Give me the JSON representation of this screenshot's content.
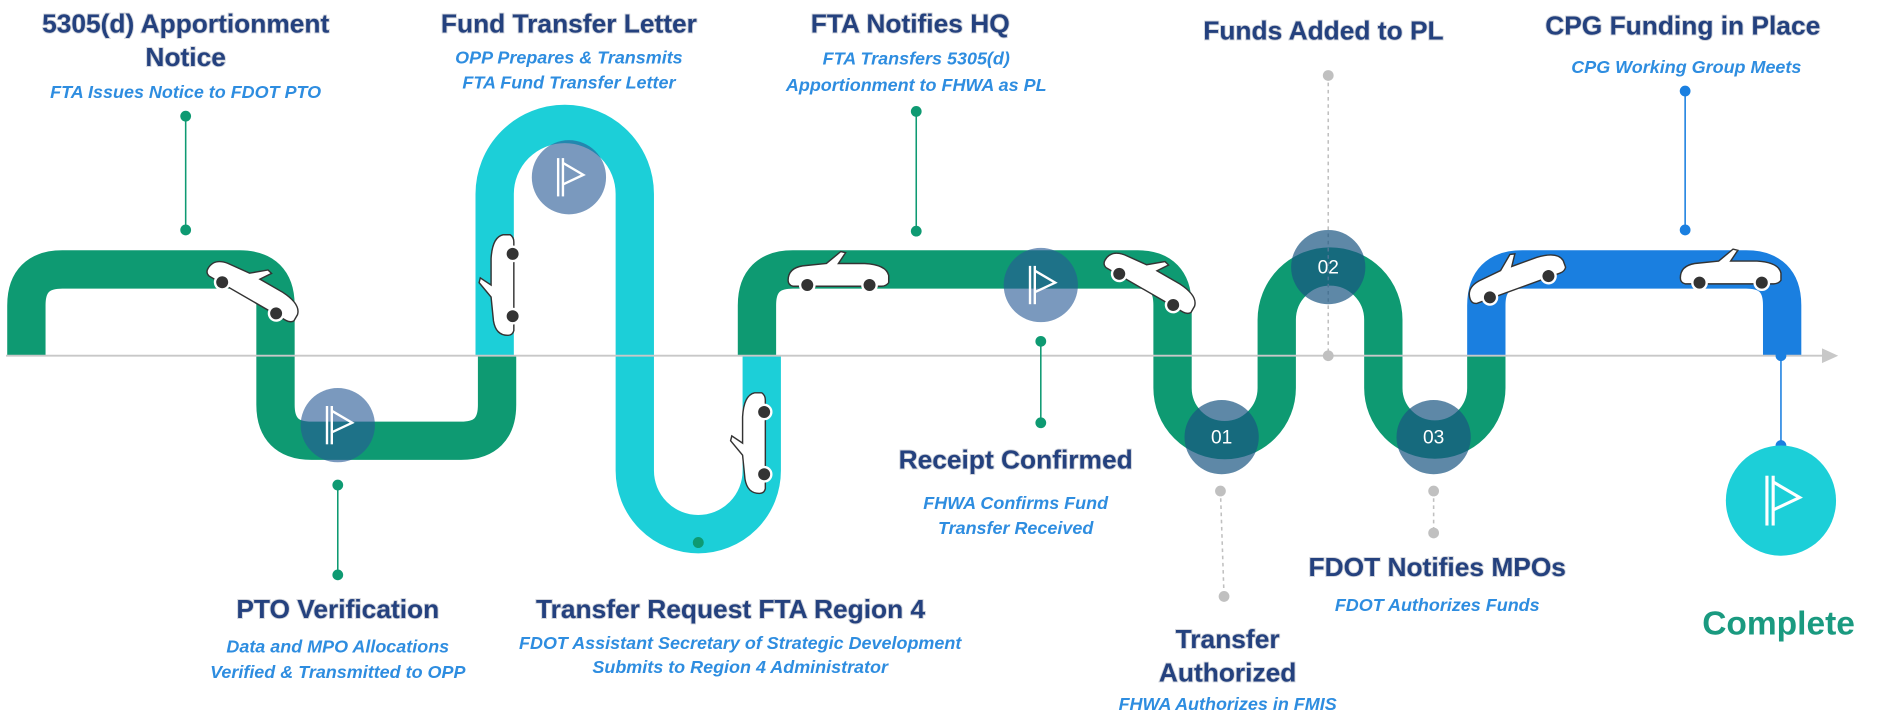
{
  "steps": [
    {
      "title": [
        "5305(d) Apportionment",
        "Notice"
      ],
      "subtitle": [
        "FTA Issues Notice to FDOT PTO"
      ]
    },
    {
      "title": [
        "PTO Verification"
      ],
      "subtitle": [
        "Data and  MPO Allocations",
        "Verified & Transmitted to OPP"
      ]
    },
    {
      "title": [
        "Fund Transfer Letter"
      ],
      "subtitle": [
        "OPP Prepares & Transmits",
        "FTA Fund Transfer Letter"
      ]
    },
    {
      "title": [
        "Transfer Request FTA Region 4"
      ],
      "subtitle": [
        "FDOT Assistant Secretary of Strategic Development",
        "Submits to Region 4 Administrator"
      ]
    },
    {
      "title": [
        "FTA Notifies HQ"
      ],
      "subtitle": [
        "FTA Transfers 5305(d)",
        "Apportionment to FHWA as PL"
      ]
    },
    {
      "title": [
        "Receipt Confirmed"
      ],
      "subtitle": [
        "FHWA Confirms Fund",
        "Transfer Received"
      ]
    },
    {
      "title": [
        "Transfer",
        "Authorized"
      ],
      "subtitle": [
        "FHWA Authorizes in FMIS"
      ]
    },
    {
      "title": [
        "Funds Added to PL"
      ],
      "subtitle": []
    },
    {
      "title": [
        "FDOT Notifies MPOs"
      ],
      "subtitle": [
        "FDOT Authorizes Funds"
      ]
    },
    {
      "title": [
        "CPG Funding in Place"
      ],
      "subtitle": [
        "CPG Working Group Meets"
      ]
    }
  ],
  "markers": [
    "01",
    "02",
    "03"
  ],
  "complete": "Complete"
}
